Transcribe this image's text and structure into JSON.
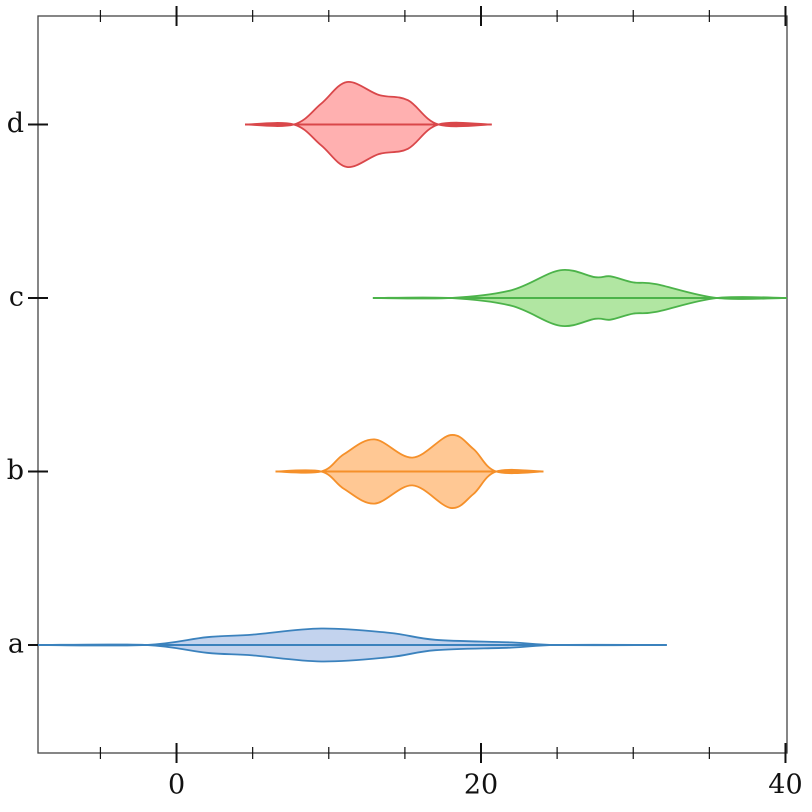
{
  "chart_data": {
    "type": "violin",
    "orientation": "horizontal",
    "categories": [
      "a",
      "b",
      "c",
      "d"
    ],
    "xlim": [
      -9.1,
      40.1
    ],
    "xticks": [
      0,
      20,
      40
    ],
    "xminorticks": [
      -5,
      5,
      10,
      15,
      25,
      30,
      35
    ],
    "series": [
      {
        "name": "a",
        "color": "#3b82bd",
        "fill": "#c3d3ee",
        "x": [
          -9.1,
          -2,
          2,
          5,
          9.5,
          14,
          17,
          22,
          25,
          32.2
        ],
        "values": [
          0,
          0,
          0.045,
          0.06,
          0.095,
          0.07,
          0.03,
          0.015,
          0,
          0
        ]
      },
      {
        "name": "b",
        "color": "#f5902a",
        "fill": "#ffc894",
        "x": [
          6.5,
          9.5,
          11,
          13,
          15.5,
          18,
          19.5,
          21,
          24.1
        ],
        "values": [
          0,
          0,
          0.1,
          0.185,
          0.08,
          0.21,
          0.13,
          0,
          0
        ]
      },
      {
        "name": "c",
        "color": "#4cb34a",
        "fill": "#b1e6a2",
        "x": [
          12.9,
          18,
          22,
          25.2,
          27.5,
          28.5,
          30,
          31.5,
          35.5,
          40.1
        ],
        "values": [
          0,
          0,
          0.045,
          0.16,
          0.12,
          0.125,
          0.09,
          0.08,
          0,
          0
        ]
      },
      {
        "name": "d",
        "color": "#d9474a",
        "fill": "#ffb0b0",
        "x": [
          4.5,
          7.7,
          9.5,
          11.2,
          13.3,
          15.2,
          17.2,
          20.7
        ],
        "values": [
          0,
          0,
          0.12,
          0.245,
          0.17,
          0.14,
          0,
          0
        ]
      }
    ]
  }
}
